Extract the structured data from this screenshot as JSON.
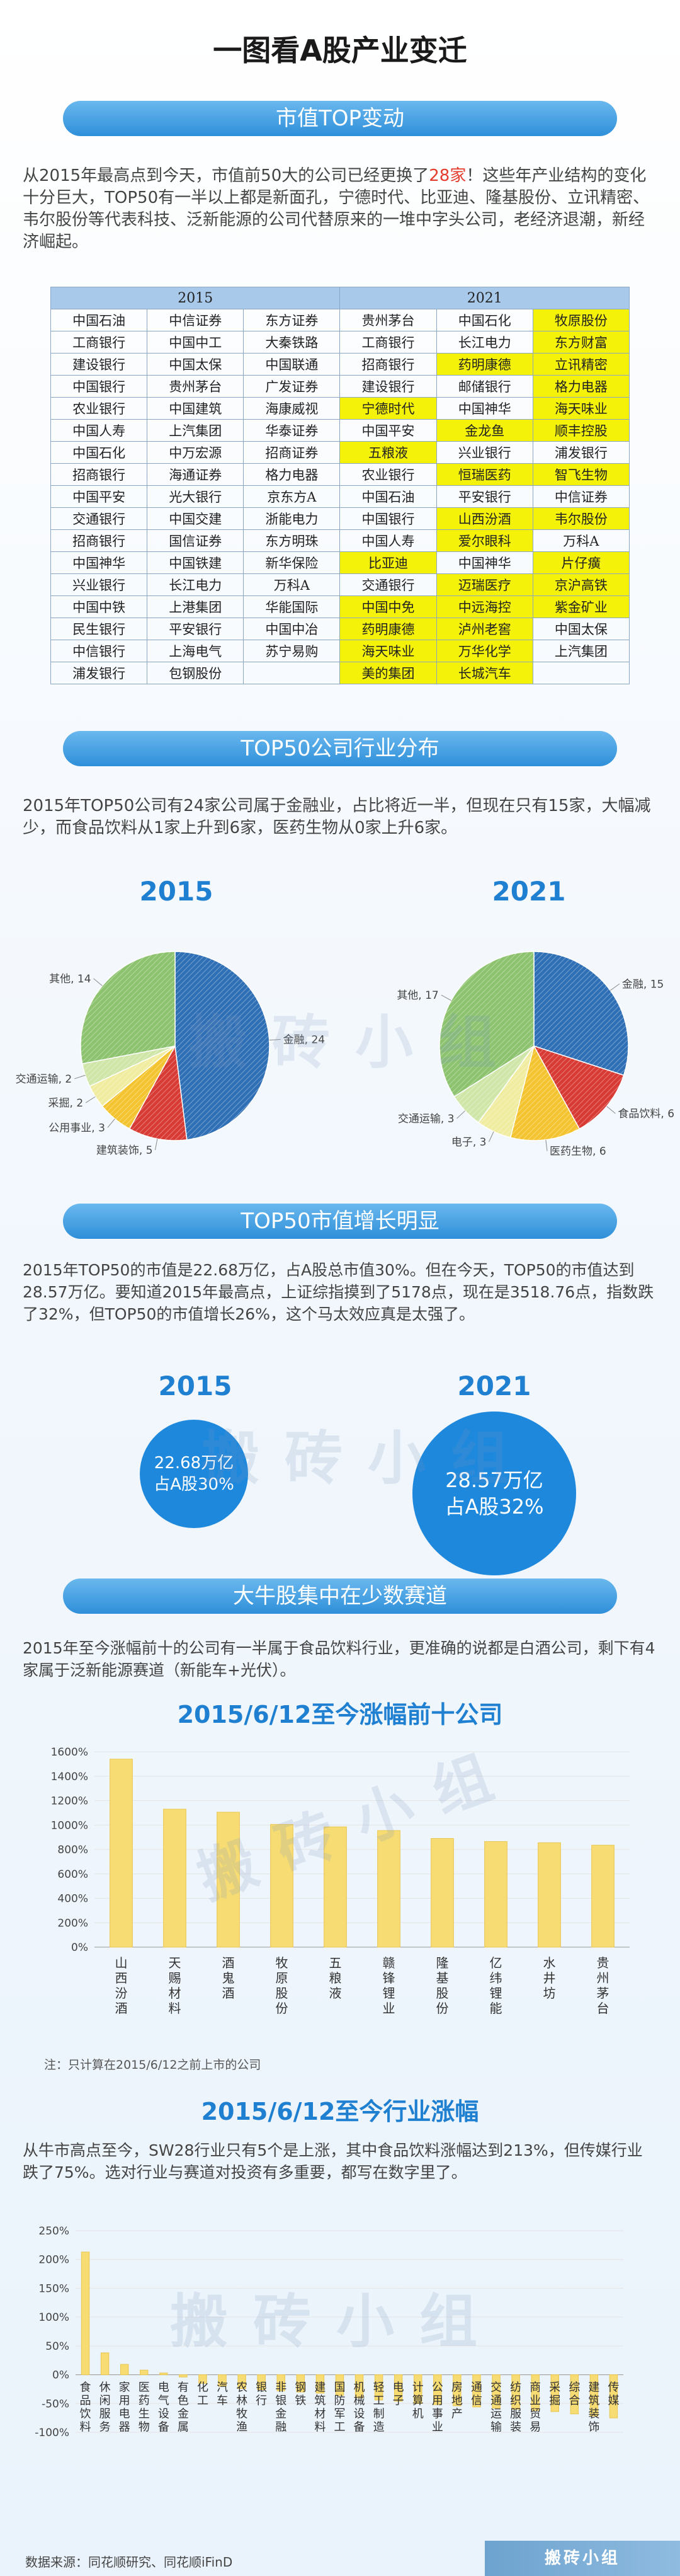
{
  "title": "一图看A股产业变迁",
  "section1": {
    "pill": "市值TOP变动",
    "para_pre": "从2015年最高点到今天，市值前50大的公司已经更换了",
    "para_hl": "28家",
    "para_post": "！这些年产业结构的变化十分巨大，TOP50有一半以上都是新面孔，宁德时代、比亚迪、隆基股份、立讯精密、韦尔股份等代表科技、泛新能源的公司代替原来的一堆中字头公司，老经济退潮，新经济崛起。",
    "table": {
      "header_2015": "2015",
      "header_2021": "2021",
      "rows": [
        [
          "中国石油",
          "中信证券",
          "东方证券",
          "贵州茅台",
          "中国石化",
          "牧原股份"
        ],
        [
          "工商银行",
          "中国中工",
          "大秦铁路",
          "工商银行",
          "长江电力",
          "东方财富"
        ],
        [
          "建设银行",
          "中国太保",
          "中国联通",
          "招商银行",
          "药明康德",
          "立讯精密"
        ],
        [
          "中国银行",
          "贵州茅台",
          "广发证券",
          "建设银行",
          "邮储银行",
          "格力电器"
        ],
        [
          "农业银行",
          "中国建筑",
          "海康威视",
          "宁德时代",
          "中国神华",
          "海天味业"
        ],
        [
          "中国人寿",
          "上汽集团",
          "华泰证券",
          "中国平安",
          "金龙鱼",
          "顺丰控股"
        ],
        [
          "中国石化",
          "中万宏源",
          "招商证券",
          "五粮液",
          "兴业银行",
          "浦发银行"
        ],
        [
          "招商银行",
          "海通证券",
          "格力电器",
          "农业银行",
          "恒瑞医药",
          "智飞生物"
        ],
        [
          "中国平安",
          "光大银行",
          "京东方A",
          "中国石油",
          "平安银行",
          "中信证券"
        ],
        [
          "交通银行",
          "中国交建",
          "浙能电力",
          "中国银行",
          "山西汾酒",
          "韦尔股份"
        ],
        [
          "招商银行",
          "国信证券",
          "东方明珠",
          "中国人寿",
          "爱尔眼科",
          "万科A"
        ],
        [
          "中国神华",
          "中国铁建",
          "新华保险",
          "比亚迪",
          "中国神华",
          "片仔癀"
        ],
        [
          "兴业银行",
          "长江电力",
          "万科A",
          "交通银行",
          "迈瑞医疗",
          "京沪高铁"
        ],
        [
          "中国中铁",
          "上港集团",
          "华能国际",
          "中国中免",
          "中远海控",
          "紫金矿业"
        ],
        [
          "民生银行",
          "平安银行",
          "中国中冶",
          "药明康德",
          "泸州老窖",
          "中国太保"
        ],
        [
          "中信银行",
          "上海电气",
          "苏宁易购",
          "海天味业",
          "万华化学",
          "上汽集团"
        ],
        [
          "浦发银行",
          "包钢股份",
          "",
          "美的集团",
          "长城汽车",
          ""
        ]
      ],
      "highlights": [
        [
          0,
          5
        ],
        [
          1,
          5
        ],
        [
          2,
          4
        ],
        [
          2,
          5
        ],
        [
          3,
          5
        ],
        [
          4,
          3
        ],
        [
          4,
          5
        ],
        [
          5,
          4
        ],
        [
          5,
          5
        ],
        [
          6,
          3
        ],
        [
          7,
          4
        ],
        [
          7,
          5
        ],
        [
          9,
          4
        ],
        [
          9,
          5
        ],
        [
          10,
          4
        ],
        [
          11,
          3
        ],
        [
          11,
          5
        ],
        [
          12,
          4
        ],
        [
          12,
          5
        ],
        [
          13,
          3
        ],
        [
          13,
          4
        ],
        [
          13,
          5
        ],
        [
          14,
          3
        ],
        [
          14,
          4
        ],
        [
          15,
          3
        ],
        [
          15,
          4
        ],
        [
          16,
          3
        ],
        [
          16,
          4
        ]
      ]
    }
  },
  "section2": {
    "pill": "TOP50公司行业分布",
    "para": "2015年TOP50公司有24家公司属于金融业，占比将近一半，但现在只有15家，大幅减少，而食品饮料从1家上升到6家，医药生物从0家上升6家。",
    "year_left": "2015",
    "year_right": "2021"
  },
  "section3": {
    "pill": "TOP50市值增长明显",
    "para": "2015年TOP50的市值是22.68万亿，占A股总市值30%。但在今天，TOP50的市值达到28.57万亿。要知道2015年最高点，上证综指摸到了5178点，现在是3518.76点，指数跌了32%，但TOP50的市值增长26%，这个马太效应真是太强了。",
    "year_left": "2015",
    "year_right": "2021",
    "circle_left": {
      "line1": "22.68万亿",
      "line2": "占A股30%"
    },
    "circle_right": {
      "line1": "28.57万亿",
      "line2": "占A股32%"
    }
  },
  "section4": {
    "pill": "大牛股集中在少数赛道",
    "para": "2015年至今涨幅前十的公司有一半属于食品饮料行业，更准确的说都是白酒公司，剩下有4家属于泛新能源赛道（新能车+光伏）。",
    "chart_title": "2015/6/12至今涨幅前十公司",
    "note": "注：只计算在2015/6/12之前上市的公司"
  },
  "section5": {
    "chart_title": "2015/6/12至今行业涨幅",
    "para": "从牛市高点至今，SW28行业只有5个是上涨，其中食品饮料涨幅达到213%，但传媒行业跌了75%。选对行业与赛道对投资有多重要，都写在数字里了。"
  },
  "watermark": "搬砖小组",
  "footer": {
    "source": "数据来源：同花顺研究、同花顺iFinD",
    "badge": "搬砖小组"
  },
  "colors": {
    "accent": "#1f7fd0",
    "bar": "#f6d96b",
    "highlight": "#f5f20a",
    "finance": "#2f6fb5",
    "consumer": "#d83a34",
    "health": "#f3c430",
    "other": "#8dc36f"
  },
  "chart_data": [
    {
      "type": "pie",
      "title": "2015",
      "slices": [
        {
          "label": "金融",
          "value": 24,
          "color": "#2f6fb5"
        },
        {
          "label": "建筑装饰",
          "value": 5,
          "color": "#d83a34"
        },
        {
          "label": "公用事业",
          "value": 3,
          "color": "#f3c430"
        },
        {
          "label": "采掘",
          "value": 2,
          "color": "#f0eca0"
        },
        {
          "label": "交通运输",
          "value": 2,
          "color": "#cfe6a8"
        },
        {
          "label": "其他",
          "value": 14,
          "color": "#8dc36f"
        }
      ]
    },
    {
      "type": "pie",
      "title": "2021",
      "slices": [
        {
          "label": "金融",
          "value": 15,
          "color": "#2f6fb5"
        },
        {
          "label": "食品饮料",
          "value": 6,
          "color": "#d83a34"
        },
        {
          "label": "医药生物",
          "value": 6,
          "color": "#f3c430"
        },
        {
          "label": "电子",
          "value": 3,
          "color": "#f0eca0"
        },
        {
          "label": "交通运输",
          "value": 3,
          "color": "#cfe6a8"
        },
        {
          "label": "其他",
          "value": 17,
          "color": "#8dc36f"
        }
      ]
    },
    {
      "type": "bar",
      "title": "2015/6/12至今涨幅前十公司",
      "categories": [
        "山西汾酒",
        "天赐材料",
        "酒鬼酒",
        "牧原股份",
        "五粮液",
        "赣锋锂业",
        "隆基股份",
        "亿纬锂能",
        "水井坊",
        "贵州茅台"
      ],
      "values": [
        1540,
        1130,
        1105,
        1005,
        985,
        955,
        890,
        865,
        855,
        835
      ],
      "ylim": [
        0,
        1600
      ],
      "yticks": [
        "0%",
        "200%",
        "400%",
        "600%",
        "800%",
        "1000%",
        "1200%",
        "1400%",
        "1600%"
      ]
    },
    {
      "type": "bar",
      "title": "2015/6/12至今行业涨幅",
      "categories": [
        "食品饮料",
        "休闲服务",
        "家用电器",
        "医药生物",
        "电气设备",
        "有色金属",
        "化工",
        "汽车",
        "农林牧渔",
        "银行",
        "非银金融",
        "钢铁",
        "建筑材料",
        "国防军工",
        "机械设备",
        "轻工制造",
        "电子",
        "计算机",
        "公用事业",
        "房地产",
        "通信",
        "交通运输",
        "纺织服装",
        "商业贸易",
        "采掘",
        "综合",
        "建筑装饰",
        "传媒"
      ],
      "values": [
        213,
        38,
        18,
        8,
        3,
        -4,
        -15,
        -20,
        -24,
        -26,
        -28,
        -30,
        -32,
        -36,
        -40,
        -44,
        -46,
        -50,
        -52,
        -54,
        -56,
        -58,
        -60,
        -62,
        -64,
        -68,
        -72,
        -75
      ],
      "ylim": [
        -100,
        250
      ],
      "yticks": [
        "-100%",
        "-50%",
        "0%",
        "50%",
        "100%",
        "150%",
        "200%",
        "250%"
      ]
    }
  ]
}
